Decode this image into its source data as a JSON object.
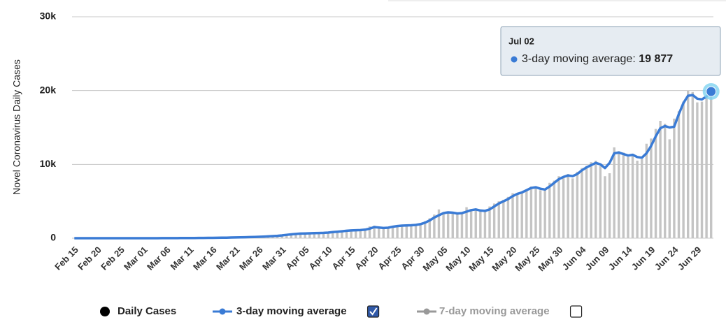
{
  "chart_data": {
    "type": "bar_line",
    "y_axis_title": "Novel Coronavirus Daily Cases",
    "categories": [
      "Feb 15",
      null,
      null,
      null,
      null,
      "Feb 20",
      null,
      null,
      null,
      null,
      "Feb 25",
      null,
      null,
      null,
      null,
      "Mar 01",
      null,
      null,
      null,
      null,
      "Mar 06",
      null,
      null,
      null,
      null,
      "Mar 11",
      null,
      null,
      null,
      null,
      "Mar 16",
      null,
      null,
      null,
      null,
      "Mar 21",
      null,
      null,
      null,
      null,
      "Mar 26",
      null,
      null,
      null,
      null,
      "Mar 31",
      null,
      null,
      null,
      null,
      "Apr 05",
      null,
      null,
      null,
      null,
      "Apr 10",
      null,
      null,
      null,
      null,
      "Apr 15",
      null,
      null,
      null,
      null,
      "Apr 20",
      null,
      null,
      null,
      null,
      "Apr 25",
      null,
      null,
      null,
      null,
      "Apr 30",
      null,
      null,
      null,
      null,
      "May 05",
      null,
      null,
      null,
      null,
      "May 10",
      null,
      null,
      null,
      null,
      "May 15",
      null,
      null,
      null,
      null,
      "May 20",
      null,
      null,
      null,
      null,
      "May 25",
      null,
      null,
      null,
      null,
      "May 30",
      null,
      null,
      null,
      null,
      "Jun 04",
      null,
      null,
      null,
      null,
      "Jun 09",
      null,
      null,
      null,
      null,
      "Jun 14",
      null,
      null,
      null,
      null,
      "Jun 19",
      null,
      null,
      null,
      null,
      "Jun 24",
      null,
      null,
      null,
      null,
      "Jun 29",
      null,
      null,
      null
    ],
    "series": [
      {
        "name": "Daily Cases",
        "color": "#c4c4c4",
        "legend_color": "#000000",
        "values": [
          0,
          0,
          0,
          0,
          0,
          0,
          0,
          0,
          0,
          0,
          0,
          0,
          0,
          0,
          1,
          0,
          2,
          3,
          4,
          8,
          10,
          12,
          14,
          18,
          22,
          28,
          32,
          38,
          42,
          48,
          55,
          62,
          75,
          82,
          95,
          105,
          118,
          140,
          160,
          180,
          205,
          230,
          260,
          300,
          350,
          420,
          480,
          560,
          600,
          640,
          630,
          680,
          700,
          690,
          760,
          800,
          860,
          920,
          980,
          1050,
          1080,
          1060,
          1150,
          1200,
          1600,
          1700,
          1300,
          1350,
          1500,
          1650,
          1700,
          1720,
          1750,
          1780,
          1850,
          2000,
          2300,
          2700,
          3200,
          3900,
          3500,
          3400,
          3300,
          3350,
          3500,
          4200,
          3700,
          3800,
          3600,
          3800,
          4300,
          4700,
          5000,
          5200,
          5600,
          6100,
          6000,
          6300,
          6600,
          7000,
          6800,
          6500,
          6600,
          7500,
          7800,
          8400,
          8200,
          8700,
          8100,
          9000,
          9500,
          9800,
          10300,
          10500,
          9800,
          8400,
          8800,
          12300,
          11800,
          11600,
          11000,
          11400,
          10500,
          10700,
          12800,
          13500,
          14800,
          15900,
          15500,
          13400,
          16200,
          17200,
          18500,
          20000,
          19800,
          18400,
          18500,
          19300,
          19800
        ]
      },
      {
        "name": "3-day moving average",
        "color": "#3a7bd5",
        "checkbox": true,
        "values": [
          0,
          0,
          0,
          0,
          0,
          0,
          0,
          0,
          0,
          0,
          0,
          0,
          0,
          0,
          0,
          1,
          1,
          2,
          3,
          5,
          8,
          10,
          12,
          15,
          20,
          25,
          30,
          35,
          40,
          45,
          50,
          60,
          70,
          80,
          90,
          100,
          110,
          130,
          150,
          170,
          190,
          220,
          250,
          280,
          320,
          380,
          450,
          520,
          580,
          620,
          640,
          660,
          680,
          700,
          720,
          760,
          820,
          880,
          940,
          1000,
          1050,
          1080,
          1100,
          1150,
          1300,
          1500,
          1450,
          1380,
          1420,
          1550,
          1650,
          1700,
          1720,
          1750,
          1800,
          1900,
          2100,
          2400,
          2800,
          3100,
          3400,
          3500,
          3450,
          3350,
          3400,
          3600,
          3800,
          3900,
          3750,
          3700,
          3900,
          4300,
          4700,
          5000,
          5300,
          5700,
          6000,
          6200,
          6500,
          6800,
          6900,
          6700,
          6600,
          7000,
          7500,
          8000,
          8300,
          8500,
          8400,
          8700,
          9200,
          9600,
          9900,
          10200,
          10000,
          9500,
          10200,
          11500,
          11600,
          11400,
          11200,
          11300,
          11000,
          10900,
          11500,
          12500,
          13800,
          14900,
          15200,
          15000,
          15100,
          16800,
          18300,
          19300,
          19400,
          18900,
          18800,
          19200,
          19877
        ]
      },
      {
        "name": "7-day moving average",
        "color": "#999999",
        "checkbox": false,
        "visible": false
      }
    ],
    "ylim": [
      0,
      30000
    ],
    "yticks": [
      {
        "value": 0,
        "label": "0"
      },
      {
        "value": 10000,
        "label": "10k"
      },
      {
        "value": 20000,
        "label": "20k"
      },
      {
        "value": 30000,
        "label": "30k"
      }
    ],
    "grid": true,
    "tooltip": {
      "title": "Jul 02",
      "label": "3-day moving average:",
      "value": "19 877"
    }
  }
}
